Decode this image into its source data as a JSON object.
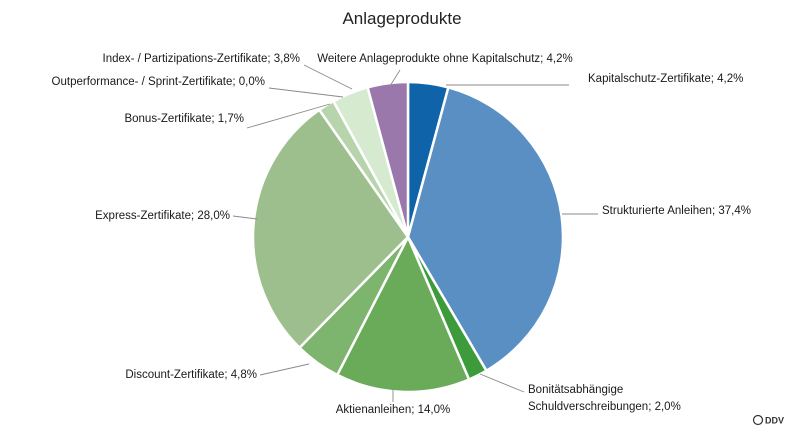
{
  "chart_data": {
    "type": "pie",
    "title": "Anlageprodukte",
    "slices": [
      {
        "label": "Kapitalschutz-Zertifikate; 4,2%",
        "value": 4.2,
        "color": "#0f63a8"
      },
      {
        "label": "Strukturierte Anleihen; 37,4%",
        "value": 37.4,
        "color": "#5a8fc3"
      },
      {
        "label": [
          "Bonitätsabhängige",
          "Schuldverschreibungen; 2,0%"
        ],
        "value": 2.0,
        "color": "#3e9b3c"
      },
      {
        "label": "Aktienanleihen; 14,0%",
        "value": 14.0,
        "color": "#6aab5a"
      },
      {
        "label": "Discount-Zertifikate; 4,8%",
        "value": 4.8,
        "color": "#7db46e"
      },
      {
        "label": "Express-Zertifikate; 28,0%",
        "value": 28.0,
        "color": "#9dbf8e"
      },
      {
        "label": "Bonus-Zertifikate; 1,7%",
        "value": 1.7,
        "color": "#b8d4ad"
      },
      {
        "label": "Outperformance- / Sprint-Zertifikate; 0,0%",
        "value": 0.0,
        "color": "#c9e0c0"
      },
      {
        "label": "Index- / Partizipations-Zertifikate; 3,8%",
        "value": 3.8,
        "color": "#d6ead0"
      },
      {
        "label": "Weitere Anlageprodukte ohne Kapitalschutz; 4,2%",
        "value": 4.2,
        "color": "#9b78ab"
      }
    ]
  },
  "source_logo": "DDV"
}
